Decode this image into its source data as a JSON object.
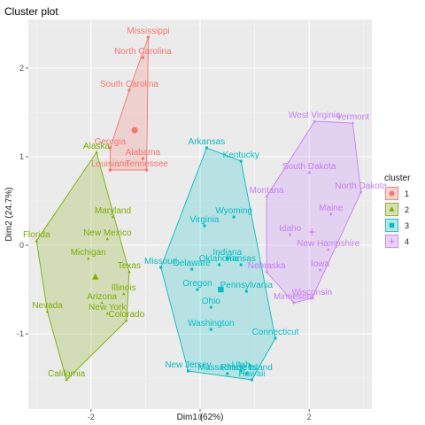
{
  "chart_data": {
    "type": "scatter",
    "title": "Cluster plot",
    "xlabel": "Dim1 (62%)",
    "ylabel": "Dim2 (24.7%)",
    "xlim": [
      -3.15,
      3.15
    ],
    "ylim": [
      -1.85,
      2.55
    ],
    "x_ticks": [
      -2,
      0,
      2
    ],
    "y_ticks": [
      -1,
      0,
      1,
      2
    ],
    "grid": true,
    "legend": {
      "title": "cluster",
      "position": "right",
      "entries": [
        "1",
        "2",
        "3",
        "4"
      ]
    },
    "colors": {
      "1": "#F8766D",
      "2": "#7CAE00",
      "3": "#00BFC4",
      "4": "#C77CFF"
    },
    "clusters": [
      {
        "name": "1",
        "color": "#F8766D",
        "marker": "circle",
        "centroid": [
          -1.2,
          1.3
        ],
        "points": [
          {
            "label": "Mississippi",
            "x": -0.95,
            "y": 2.35
          },
          {
            "label": "North Carolina",
            "x": -1.05,
            "y": 2.12
          },
          {
            "label": "South Carolina",
            "x": -1.3,
            "y": 1.75
          },
          {
            "label": "Georgia",
            "x": -1.65,
            "y": 1.1
          },
          {
            "label": "Alabama",
            "x": -1.05,
            "y": 0.98
          },
          {
            "label": "Louisiana",
            "x": -1.65,
            "y": 0.85
          },
          {
            "label": "Tennessee",
            "x": -0.98,
            "y": 0.85
          }
        ]
      },
      {
        "name": "2",
        "color": "#7CAE00",
        "marker": "triangle",
        "centroid": [
          -1.92,
          -0.36
        ],
        "points": [
          {
            "label": "Alaska",
            "x": -1.9,
            "y": 1.05
          },
          {
            "label": "Maryland",
            "x": -1.6,
            "y": 0.32
          },
          {
            "label": "New Mexico",
            "x": -1.7,
            "y": 0.07
          },
          {
            "label": "Florida",
            "x": -3.0,
            "y": 0.05
          },
          {
            "label": "Michigan",
            "x": -2.05,
            "y": -0.15
          },
          {
            "label": "Texas",
            "x": -1.3,
            "y": -0.3
          },
          {
            "label": "Illinois",
            "x": -1.4,
            "y": -0.55
          },
          {
            "label": "Nevada",
            "x": -2.8,
            "y": -0.75
          },
          {
            "label": "Arizona",
            "x": -1.8,
            "y": -0.65
          },
          {
            "label": "New York",
            "x": -1.7,
            "y": -0.77
          },
          {
            "label": "Colorado",
            "x": -1.35,
            "y": -0.85
          },
          {
            "label": "California",
            "x": -2.45,
            "y": -1.52
          }
        ]
      },
      {
        "name": "3",
        "color": "#00BFC4",
        "marker": "square",
        "centroid": [
          0.38,
          -0.5
        ],
        "points": [
          {
            "label": "Arkansas",
            "x": 0.12,
            "y": 1.1
          },
          {
            "label": "Kentucky",
            "x": 0.75,
            "y": 0.95
          },
          {
            "label": "Wyoming",
            "x": 0.62,
            "y": 0.32
          },
          {
            "label": "Virginia",
            "x": 0.08,
            "y": 0.22
          },
          {
            "label": "Indiana",
            "x": 0.5,
            "y": -0.15
          },
          {
            "label": "Missouri",
            "x": -0.72,
            "y": -0.25
          },
          {
            "label": "Delaware",
            "x": -0.15,
            "y": -0.27
          },
          {
            "label": "Oklahoma",
            "x": 0.35,
            "y": -0.22
          },
          {
            "label": "Kansas",
            "x": 0.75,
            "y": -0.22
          },
          {
            "label": "Oregon",
            "x": -0.05,
            "y": -0.5
          },
          {
            "label": "Pennsylvania",
            "x": 0.85,
            "y": -0.52
          },
          {
            "label": "Ohio",
            "x": 0.2,
            "y": -0.7
          },
          {
            "label": "Washington",
            "x": 0.2,
            "y": -0.95
          },
          {
            "label": "Connecticut",
            "x": 1.38,
            "y": -1.05
          },
          {
            "label": "New Jersey",
            "x": -0.22,
            "y": -1.42
          },
          {
            "label": "Massachusetts",
            "x": 0.5,
            "y": -1.45
          },
          {
            "label": "Utah",
            "x": 0.75,
            "y": -1.42
          },
          {
            "label": "Rhode Island",
            "x": 0.85,
            "y": -1.45
          },
          {
            "label": "Hawaii",
            "x": 0.95,
            "y": -1.52
          }
        ]
      },
      {
        "name": "4",
        "color": "#C77CFF",
        "marker": "cross",
        "centroid": [
          2.05,
          0.15
        ],
        "points": [
          {
            "label": "West Virginia",
            "x": 2.1,
            "y": 1.4
          },
          {
            "label": "Vermont",
            "x": 2.8,
            "y": 1.38
          },
          {
            "label": "South Dakota",
            "x": 2.0,
            "y": 0.82
          },
          {
            "label": "Maine",
            "x": 2.4,
            "y": 0.35
          },
          {
            "label": "North Dakota",
            "x": 2.95,
            "y": 0.6
          },
          {
            "label": "Montana",
            "x": 1.22,
            "y": 0.55
          },
          {
            "label": "Idaho",
            "x": 1.65,
            "y": 0.12
          },
          {
            "label": "New Hampshire",
            "x": 2.35,
            "y": -0.05
          },
          {
            "label": "Iowa",
            "x": 2.2,
            "y": -0.28
          },
          {
            "label": "Nebraska",
            "x": 1.22,
            "y": -0.3
          },
          {
            "label": "Minnesota",
            "x": 1.72,
            "y": -0.65
          },
          {
            "label": "Wisconsin",
            "x": 2.05,
            "y": -0.6
          }
        ]
      }
    ]
  }
}
